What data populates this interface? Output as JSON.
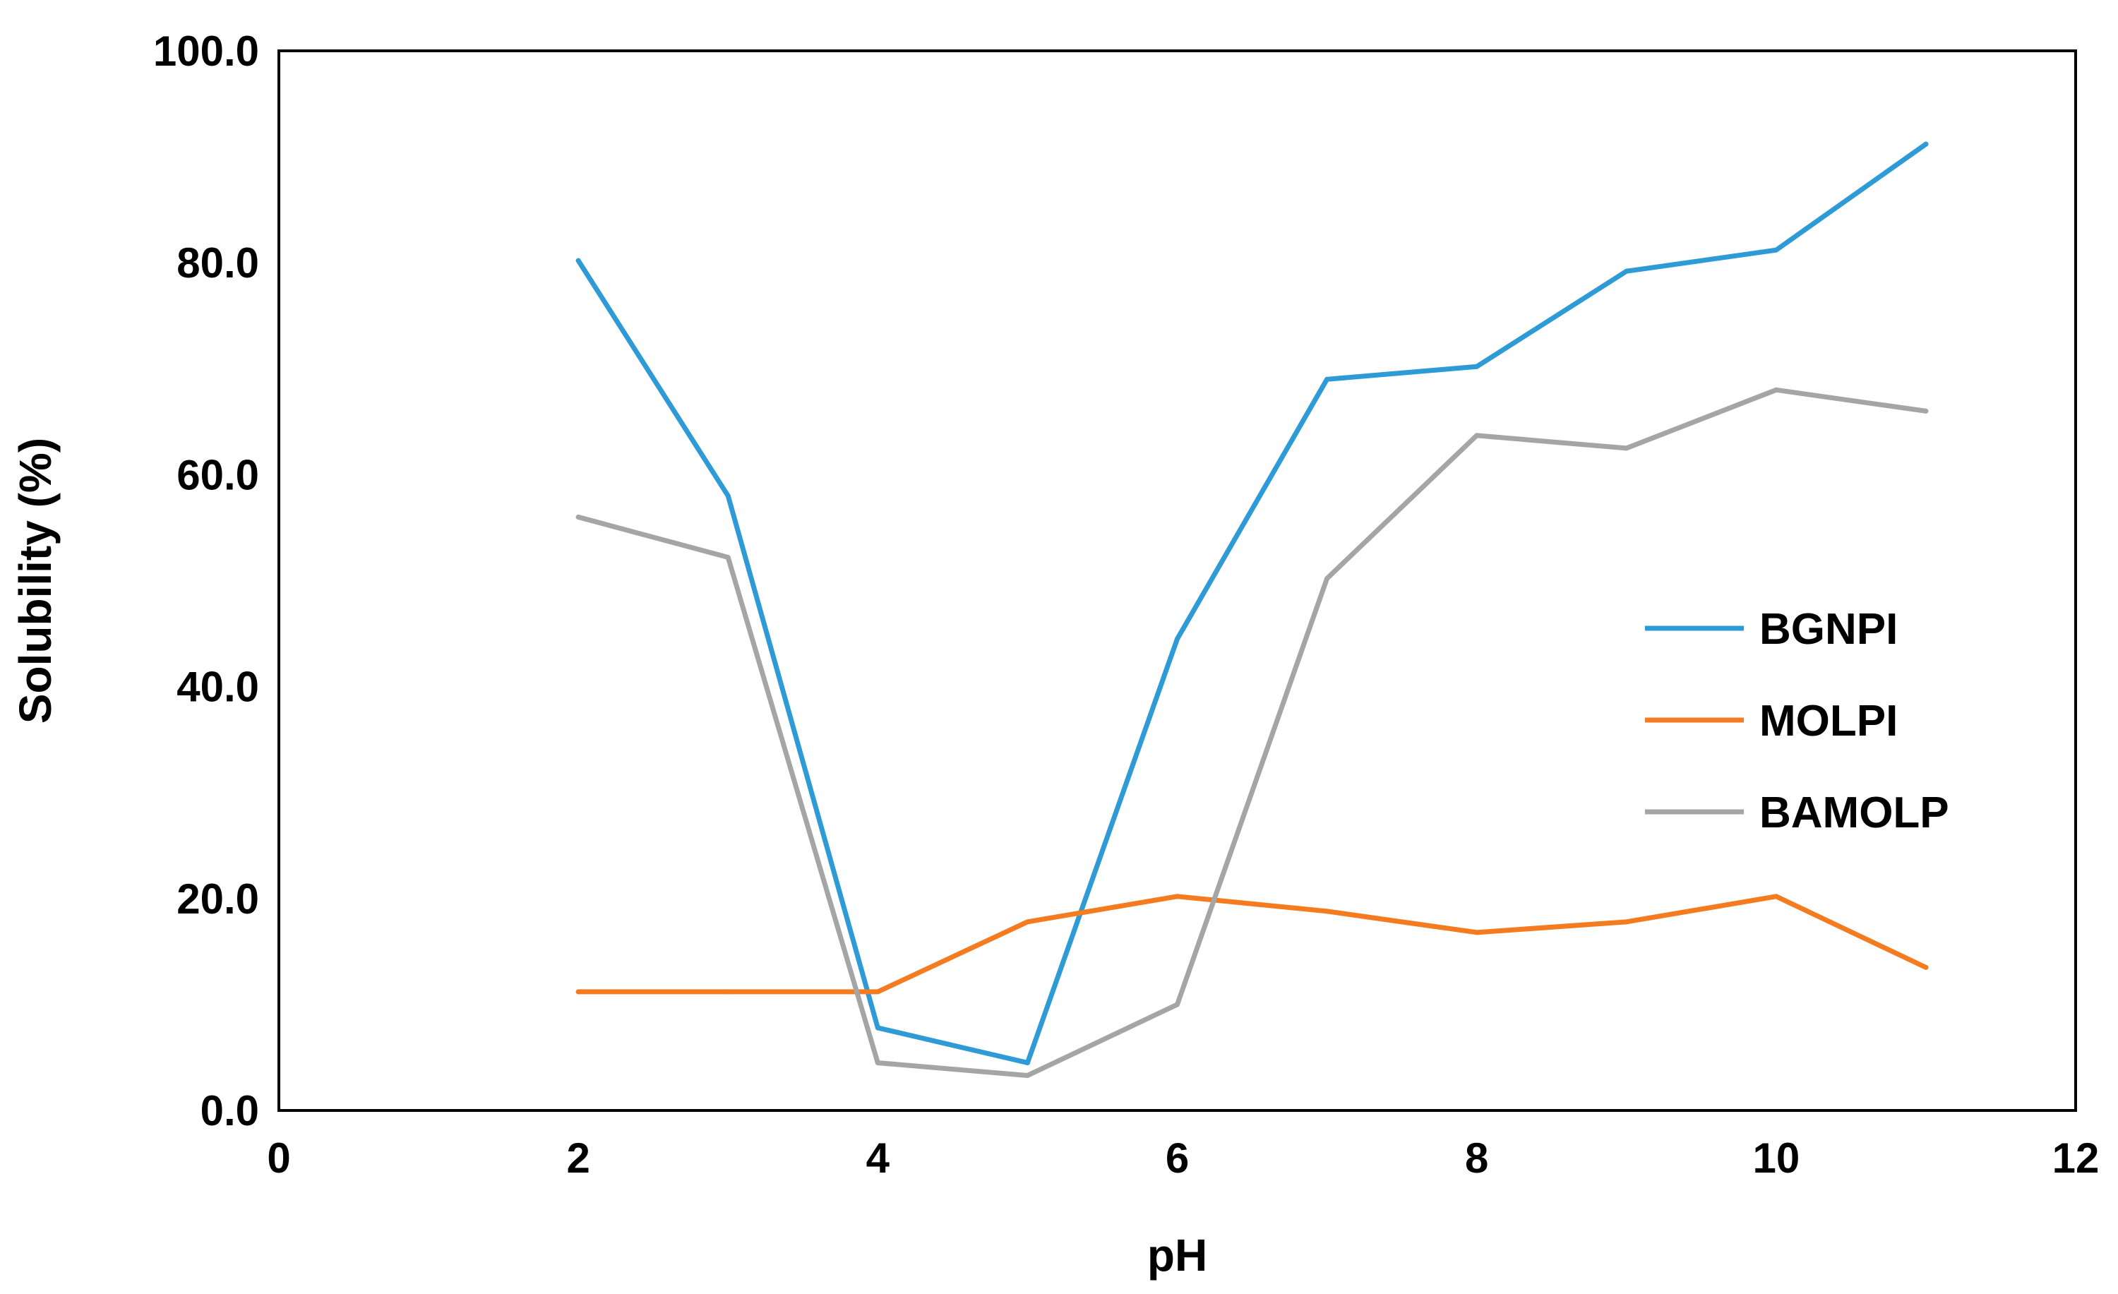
{
  "chart_data": {
    "type": "line",
    "title": "",
    "xlabel": "pH",
    "ylabel": "Solubility (%)",
    "xlim": [
      0,
      12
    ],
    "ylim": [
      0,
      100
    ],
    "x_ticks": [
      0,
      2,
      4,
      6,
      8,
      10,
      12
    ],
    "y_ticks": [
      0,
      20,
      40,
      60,
      80,
      100
    ],
    "y_tick_labels": [
      "0.0",
      "20.0",
      "40.0",
      "60.0",
      "80.0",
      "100.0"
    ],
    "x_tick_labels": [
      "0",
      "2",
      "4",
      "6",
      "8",
      "10",
      "12"
    ],
    "grid": false,
    "legend_position": "right",
    "x": [
      2,
      3,
      4,
      5,
      6,
      7,
      8,
      9,
      10,
      11
    ],
    "series": [
      {
        "name": "BGNPI",
        "color": "#2E9BD6",
        "values": [
          80.2,
          58.0,
          7.8,
          4.5,
          44.5,
          69.0,
          70.2,
          79.2,
          81.2,
          91.2
        ]
      },
      {
        "name": "MOLPI",
        "color": "#F47B20",
        "values": [
          11.2,
          11.2,
          11.2,
          17.8,
          20.2,
          18.8,
          16.8,
          17.8,
          20.2,
          13.5
        ]
      },
      {
        "name": "BAMOLP",
        "color": "#A5A5A5",
        "values": [
          56.0,
          52.2,
          4.5,
          3.3,
          10.0,
          50.2,
          63.7,
          62.5,
          68.0,
          66.0
        ]
      }
    ]
  }
}
